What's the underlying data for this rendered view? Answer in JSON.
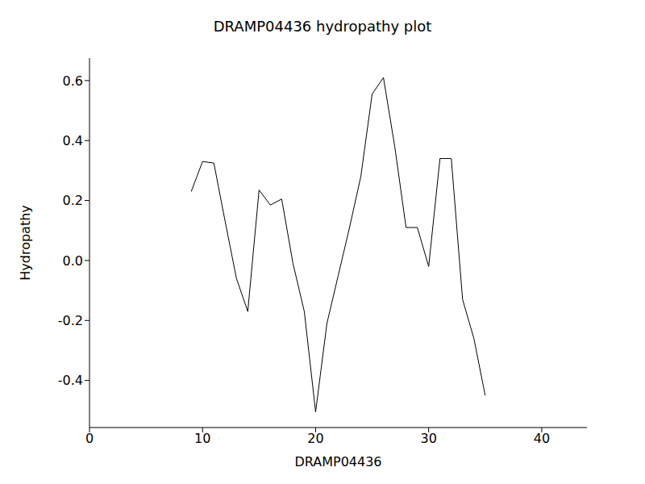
{
  "chart_data": {
    "type": "line",
    "title": "DRAMP04436 hydropathy plot",
    "x_label": "DRAMP04436",
    "y_label": "Hydropathy",
    "x": [
      9,
      10,
      11,
      12,
      13,
      14,
      15,
      16,
      17,
      18,
      19,
      20,
      21,
      22,
      23,
      24,
      25,
      26,
      27,
      28,
      29,
      30,
      31,
      32,
      33,
      34,
      35
    ],
    "values": [
      0.23,
      0.33,
      0.325,
      0.13,
      -0.06,
      -0.17,
      0.235,
      0.185,
      0.205,
      -0.01,
      -0.17,
      -0.505,
      -0.21,
      -0.05,
      0.11,
      0.28,
      0.555,
      0.61,
      0.38,
      0.11,
      0.11,
      -0.02,
      0.34,
      0.34,
      -0.13,
      -0.26,
      -0.45
    ],
    "color": "#000000",
    "xlim": [
      0,
      44
    ],
    "ylim": [
      -0.557,
      0.675
    ],
    "xticks": [
      0,
      10,
      20,
      30,
      40
    ],
    "yticks": [
      -0.4,
      -0.2,
      {
        "value": 0,
        "label": "0.0"
      },
      0.2,
      0.4,
      0.6
    ],
    "grid": false
  }
}
